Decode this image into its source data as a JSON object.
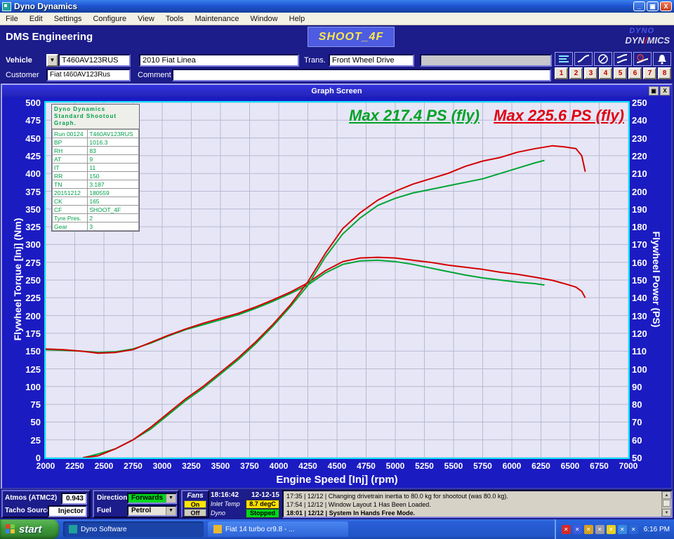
{
  "window": {
    "title": "Dyno Dynamics"
  },
  "menu_bar": {
    "items": [
      "File",
      "Edit",
      "Settings",
      "Configure",
      "View",
      "Tools",
      "Maintenance",
      "Window",
      "Help"
    ]
  },
  "header": {
    "company": "DMS Engineering",
    "mode_button": "SHOOT_4F",
    "logo_line1": "DYNO",
    "logo_line2_left": "DYN",
    "logo_slash": "/",
    "logo_line2_right": "MICS"
  },
  "form": {
    "vehicle_label": "Vehicle",
    "vehicle_id": "T460AV123RUS",
    "vehicle_desc": "2010 Fiat Linea",
    "trans_label": "Trans.",
    "trans_value": "Front Wheel Drive",
    "customer_label": "Customer",
    "customer_value": "Fiat t460AV123Rus",
    "comment_label": "Comment",
    "comment_value": ""
  },
  "toolbar": {
    "icon_buttons": [
      "menu-lines-icon",
      "curve-icon",
      "gauge-icon",
      "waves-icon",
      "timer-curve-icon",
      "bell-icon"
    ],
    "number_buttons": [
      "1",
      "2",
      "3",
      "4",
      "5",
      "6",
      "7",
      "8"
    ]
  },
  "graph_window": {
    "title": "Graph Screen"
  },
  "legend_table": {
    "header": "Dyno Dynamics Standard Shootout Graph.",
    "rows": [
      [
        "Run 00124",
        "T460AV123RUS"
      ],
      [
        "BP",
        "1016.3"
      ],
      [
        "RH",
        "83"
      ],
      [
        "AT",
        "9"
      ],
      [
        "IT",
        "11"
      ],
      [
        "RR",
        "150"
      ],
      [
        "TN",
        "3.187"
      ],
      [
        "20151212",
        "180559"
      ],
      [
        "CK",
        "165"
      ],
      [
        "CF",
        "SHOOT_4F"
      ],
      [
        "Tyre Pres.",
        "2"
      ],
      [
        "Gear",
        "3"
      ]
    ]
  },
  "chart_data": {
    "type": "line",
    "xlabel": "Engine Speed [Inj] (rpm)",
    "ylabel_left": "Flywheel Torque [Inj] (Nm)",
    "ylabel_right": "Flywheel Power (PS)",
    "xlim": [
      2000,
      7000
    ],
    "xtick_step": 250,
    "ylim_left": [
      0,
      500
    ],
    "ytick_step_left": 25,
    "ylim_right": [
      50,
      250
    ],
    "ytick_step_right": 10,
    "grid": true,
    "grid_color": "#b9b9d2",
    "plot_bg": "#e6e6f6",
    "annotations": [
      {
        "text": "Max 217.4 PS (fly)",
        "color": "#00a226"
      },
      {
        "text": "Max 225.6 PS (fly)",
        "color": "#e00012"
      }
    ],
    "series": [
      {
        "name": "torque-green",
        "axis": "left",
        "color": "#00a534",
        "points": [
          [
            2000,
            152
          ],
          [
            2150,
            151
          ],
          [
            2300,
            150
          ],
          [
            2450,
            148
          ],
          [
            2600,
            149
          ],
          [
            2750,
            153
          ],
          [
            2900,
            161
          ],
          [
            3050,
            171
          ],
          [
            3200,
            180
          ],
          [
            3350,
            187
          ],
          [
            3500,
            194
          ],
          [
            3650,
            201
          ],
          [
            3800,
            210
          ],
          [
            3950,
            220
          ],
          [
            4100,
            231
          ],
          [
            4250,
            243
          ],
          [
            4400,
            260
          ],
          [
            4550,
            272
          ],
          [
            4700,
            277
          ],
          [
            4850,
            278
          ],
          [
            5000,
            276
          ],
          [
            5150,
            272
          ],
          [
            5300,
            267
          ],
          [
            5450,
            262
          ],
          [
            5600,
            257
          ],
          [
            5750,
            253
          ],
          [
            5900,
            250
          ],
          [
            6050,
            247
          ],
          [
            6200,
            245
          ],
          [
            6280,
            243
          ]
        ]
      },
      {
        "name": "torque-red",
        "axis": "left",
        "color": "#d40000",
        "points": [
          [
            2000,
            153
          ],
          [
            2150,
            152
          ],
          [
            2300,
            150
          ],
          [
            2450,
            147
          ],
          [
            2600,
            148
          ],
          [
            2750,
            152
          ],
          [
            2900,
            162
          ],
          [
            3050,
            172
          ],
          [
            3200,
            181
          ],
          [
            3350,
            189
          ],
          [
            3500,
            196
          ],
          [
            3650,
            203
          ],
          [
            3800,
            212
          ],
          [
            3950,
            222
          ],
          [
            4100,
            233
          ],
          [
            4250,
            246
          ],
          [
            4400,
            263
          ],
          [
            4550,
            276
          ],
          [
            4700,
            281
          ],
          [
            4850,
            282
          ],
          [
            5000,
            281
          ],
          [
            5150,
            278
          ],
          [
            5300,
            275
          ],
          [
            5450,
            271
          ],
          [
            5600,
            268
          ],
          [
            5750,
            265
          ],
          [
            5900,
            261
          ],
          [
            6050,
            258
          ],
          [
            6200,
            254
          ],
          [
            6350,
            249.5
          ],
          [
            6450,
            245
          ],
          [
            6550,
            240
          ],
          [
            6600,
            234
          ],
          [
            6630,
            225
          ]
        ]
      },
      {
        "name": "power-green",
        "axis": "right",
        "color": "#00a534",
        "points": [
          [
            2330,
            50
          ],
          [
            2450,
            52
          ],
          [
            2600,
            55
          ],
          [
            2750,
            60
          ],
          [
            2900,
            66
          ],
          [
            3050,
            74
          ],
          [
            3200,
            82
          ],
          [
            3350,
            89
          ],
          [
            3500,
            97
          ],
          [
            3650,
            105
          ],
          [
            3800,
            114
          ],
          [
            3950,
            124
          ],
          [
            4100,
            135
          ],
          [
            4250,
            147
          ],
          [
            4400,
            163
          ],
          [
            4550,
            176
          ],
          [
            4700,
            185
          ],
          [
            4850,
            192
          ],
          [
            5000,
            196
          ],
          [
            5150,
            199
          ],
          [
            5300,
            201
          ],
          [
            5450,
            203
          ],
          [
            5600,
            205
          ],
          [
            5750,
            207
          ],
          [
            5900,
            210
          ],
          [
            6050,
            213
          ],
          [
            6200,
            216
          ],
          [
            6280,
            217.4
          ]
        ]
      },
      {
        "name": "power-red",
        "axis": "right",
        "color": "#d40000",
        "points": [
          [
            2320,
            50
          ],
          [
            2450,
            51
          ],
          [
            2600,
            55
          ],
          [
            2750,
            60
          ],
          [
            2900,
            67
          ],
          [
            3050,
            75
          ],
          [
            3200,
            83
          ],
          [
            3350,
            90
          ],
          [
            3500,
            98
          ],
          [
            3650,
            106
          ],
          [
            3800,
            115
          ],
          [
            3950,
            125
          ],
          [
            4100,
            136
          ],
          [
            4250,
            149
          ],
          [
            4400,
            165
          ],
          [
            4550,
            179
          ],
          [
            4700,
            188
          ],
          [
            4850,
            195
          ],
          [
            5000,
            200
          ],
          [
            5150,
            204
          ],
          [
            5300,
            207
          ],
          [
            5450,
            210
          ],
          [
            5600,
            214
          ],
          [
            5750,
            217
          ],
          [
            5900,
            219
          ],
          [
            6050,
            222
          ],
          [
            6200,
            224
          ],
          [
            6350,
            225.6
          ],
          [
            6450,
            225
          ],
          [
            6550,
            224
          ],
          [
            6600,
            220
          ],
          [
            6630,
            211
          ]
        ]
      }
    ]
  },
  "status_bar": {
    "atmos_label": "Atmos (ATMC2)",
    "atmos_value": "0.943",
    "tacho_label": "Tacho Source",
    "tacho_value": "Injector",
    "direction_label": "Direction",
    "direction_value": "Forwards",
    "direction_color": "#00d81c",
    "fuel_label": "Fuel",
    "fuel_value": "Petrol",
    "fuel_color": "#e8e4da",
    "fans_label": "Fans",
    "fans_on": "On",
    "fans_off": "Off",
    "time": "18:16:42",
    "date": "12-12-15",
    "inlet_label": "Inlet Temp",
    "inlet_value": "8.7 degC",
    "inlet_color": "#ffe000",
    "dyno_label": "Dyno",
    "dyno_value": "Stopped",
    "dyno_color": "#00d81c",
    "log": [
      "17:35 | 12/12 | Changing drivetrain inertia to 80.0 kg for shootout (was 80.0 kg).",
      "17:54 | 12/12 | Window Layout 1 Has Been Loaded.",
      "18:01 | 12/12 | System In Hands Free Mode."
    ]
  },
  "taskbar": {
    "start_label": "start",
    "tasks": [
      "Dyno Software",
      "Fiat 14 turbo cr9.8 - ..."
    ],
    "tray_icons": [
      "security-alert-icon",
      "messenger-icon",
      "phone-icon",
      "scheduler-icon",
      "volume-icon",
      "network-icon",
      "updates-icon"
    ],
    "tray_time": "6:16 PM"
  }
}
